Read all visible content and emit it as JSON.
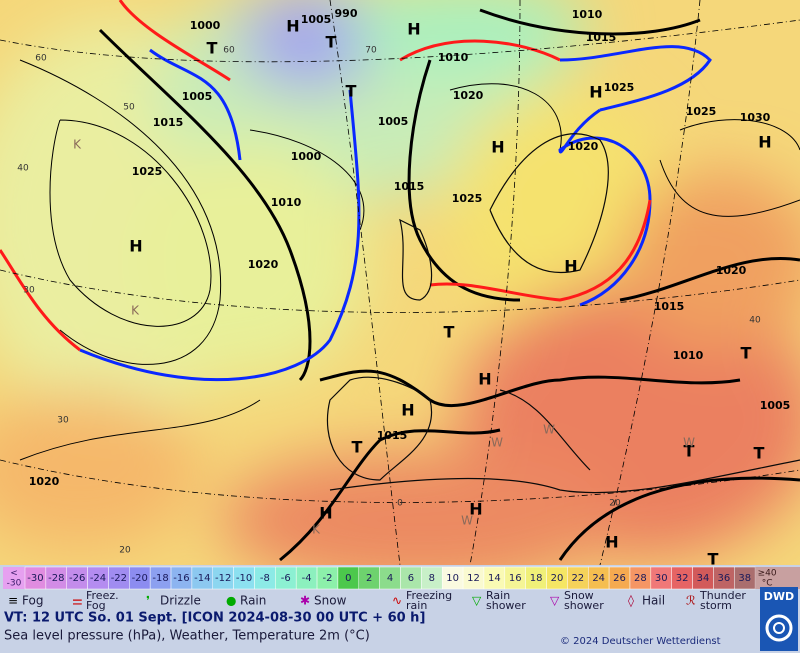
{
  "map": {
    "isobar_labels": [
      1000,
      1005,
      1015,
      1025,
      1010,
      1020,
      1000,
      1005,
      990,
      1005,
      1010,
      1020,
      1015,
      1025,
      1020,
      1010,
      1015,
      1025,
      1025,
      1030,
      1020,
      1015,
      1010,
      1005,
      1015,
      1020
    ],
    "temperature_labels": [
      60,
      50,
      40,
      30,
      30,
      20,
      70,
      60,
      40,
      20,
      0
    ],
    "pressure_centers": [
      "H",
      "T",
      "H",
      "T",
      "T",
      "H",
      "H",
      "H",
      "H",
      "H",
      "T",
      "H",
      "H",
      "T",
      "H",
      "H",
      "H",
      "T",
      "T",
      "T",
      "T"
    ],
    "weather_marks": [
      "K",
      "K",
      "K",
      "W",
      "W",
      "W",
      "W"
    ]
  },
  "scale": {
    "low_label": [
      "<",
      "-30"
    ],
    "values": [
      -30,
      -28,
      -26,
      -24,
      -22,
      -20,
      -18,
      -16,
      -14,
      -12,
      -10,
      -8,
      -6,
      -4,
      -2,
      0,
      2,
      4,
      6,
      8,
      10,
      12,
      14,
      16,
      18,
      20,
      22,
      24,
      26,
      28,
      30,
      32,
      34,
      36,
      38
    ],
    "high_label": [
      "≥40",
      "°C"
    ]
  },
  "legend": [
    "Fog",
    "Freez. Fog",
    "Drizzle",
    "Rain",
    "Snow",
    "Freezing rain",
    "Rain shower",
    "Snow shower",
    "Hail",
    "Thunder storm"
  ],
  "footer": {
    "valid_time": "VT: 12 UTC So.  01 Sept. [ICON 2024-08-30  00 UTC + 60 h]",
    "description": "Sea level pressure (hPa), Weather, Temperature 2m (°C)",
    "copyright": "© 2024 Deutscher Wetterdienst",
    "logo": "DWD"
  }
}
